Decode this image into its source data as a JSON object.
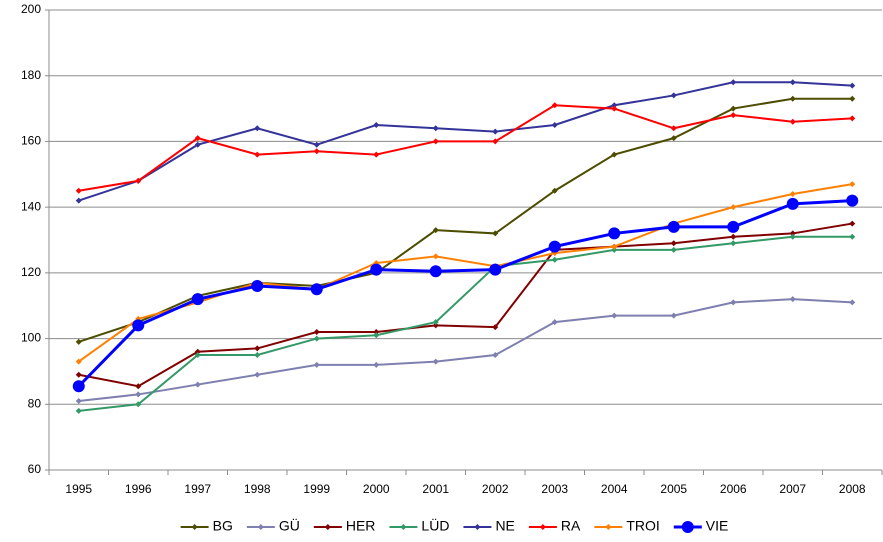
{
  "chart_data": {
    "type": "line",
    "categories": [
      "1995",
      "1996",
      "1997",
      "1998",
      "1999",
      "2000",
      "2001",
      "2002",
      "2003",
      "2004",
      "2005",
      "2006",
      "2007",
      "2008"
    ],
    "ylim": [
      60,
      200
    ],
    "yticks": [
      60,
      80,
      100,
      120,
      140,
      160,
      180,
      200
    ],
    "grid": true,
    "legend": "bottom",
    "series": [
      {
        "name": "BG",
        "color": "#4d4d00",
        "values": [
          99,
          105,
          113,
          117,
          116,
          120,
          133,
          132,
          145,
          156,
          161,
          170,
          173,
          173
        ]
      },
      {
        "name": "GÜ",
        "color": "#7f7fb0",
        "values": [
          81,
          83,
          86,
          89,
          92,
          92,
          93,
          95,
          105,
          107,
          107,
          111,
          112,
          111
        ]
      },
      {
        "name": "HER",
        "color": "#800000",
        "values": [
          89,
          85.5,
          96,
          97,
          102,
          102,
          104,
          103.5,
          127,
          128,
          129,
          131,
          132,
          135
        ]
      },
      {
        "name": "LÜD",
        "color": "#339966",
        "values": [
          78,
          80,
          95,
          95,
          100,
          101,
          105,
          122,
          124,
          127,
          127,
          129,
          131,
          131
        ]
      },
      {
        "name": "NE",
        "color": "#333399",
        "values": [
          142,
          148,
          159,
          164,
          159,
          165,
          164,
          163,
          165,
          171,
          174,
          178,
          178,
          177
        ]
      },
      {
        "name": "RA",
        "color": "#ff0000",
        "values": [
          145,
          148,
          161,
          156,
          157,
          156,
          160,
          160,
          171,
          170,
          164,
          168,
          166,
          167
        ]
      },
      {
        "name": "TROI",
        "color": "#ff8000",
        "values": [
          93,
          106,
          111,
          117,
          115,
          123,
          125,
          122,
          126,
          128,
          135,
          140,
          144,
          147
        ]
      },
      {
        "name": "VIE",
        "color": "#0000ff",
        "values": [
          85.5,
          104,
          112,
          116,
          115,
          121,
          120.5,
          121,
          128,
          132,
          134,
          134,
          141,
          142
        ]
      }
    ]
  }
}
